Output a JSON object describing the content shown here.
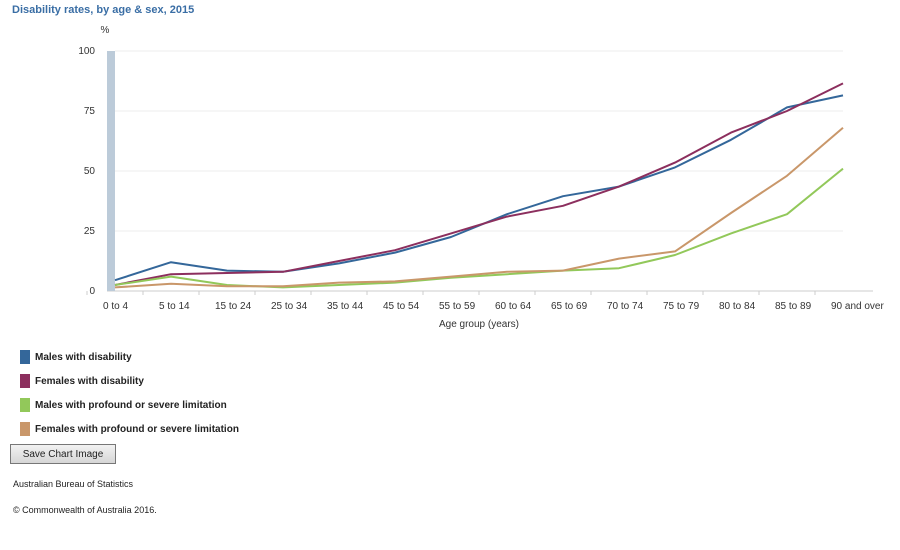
{
  "chart_data": {
    "type": "line",
    "title": "Disability rates, by age & sex, 2015",
    "ylabel": "%",
    "xlabel": "Age group (years)",
    "ylim": [
      0,
      100
    ],
    "yticks": [
      0,
      25,
      50,
      75,
      100
    ],
    "grid": true,
    "legend_position": "bottom-left",
    "categories": [
      "0 to 4",
      "5 to 14",
      "15 to 24",
      "25 to 34",
      "35 to 44",
      "45 to 54",
      "55 to 59",
      "60 to 64",
      "65 to 69",
      "70 to 74",
      "75 to 79",
      "80 to 84",
      "85 to 89",
      "90 and over"
    ],
    "series": [
      {
        "name": "Males with disability",
        "color": "#34679a",
        "values": [
          4.5,
          12,
          8.5,
          8,
          11.5,
          16,
          22.5,
          32,
          39.5,
          43.5,
          51.5,
          63,
          76.5,
          81.5
        ]
      },
      {
        "name": "Females with disability",
        "color": "#8c2f5e",
        "values": [
          2.5,
          7,
          7.5,
          8,
          12.5,
          17,
          24,
          31,
          35.5,
          43.5,
          53.5,
          66,
          75,
          86.5
        ]
      },
      {
        "name": "Males with profound or severe limitation",
        "color": "#92c85a",
        "values": [
          2.5,
          6,
          2.5,
          1.5,
          2.5,
          3.5,
          5.5,
          7,
          8.5,
          9.5,
          15,
          24,
          32,
          51
        ]
      },
      {
        "name": "Females with profound or severe limitation",
        "color": "#c9976a",
        "values": [
          1.5,
          3,
          2,
          2,
          3.5,
          4,
          6,
          8,
          8.5,
          13.5,
          16.5,
          32.5,
          48,
          68
        ]
      }
    ]
  },
  "ui": {
    "save_button_label": "Save Chart Image",
    "source": "Australian Bureau of Statistics",
    "copyright": "© Commonwealth of Australia 2016."
  }
}
